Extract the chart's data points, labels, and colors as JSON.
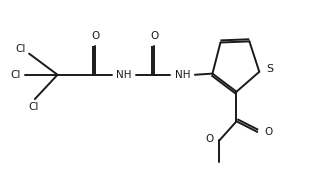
{
  "bg_color": "#ffffff",
  "line_color": "#1a1a1a",
  "line_width": 1.4,
  "font_size": 7.5,
  "figsize": [
    3.14,
    1.76
  ],
  "dpi": 100,
  "xlim": [
    0.0,
    3.3
  ],
  "ylim": [
    0.0,
    1.65
  ]
}
